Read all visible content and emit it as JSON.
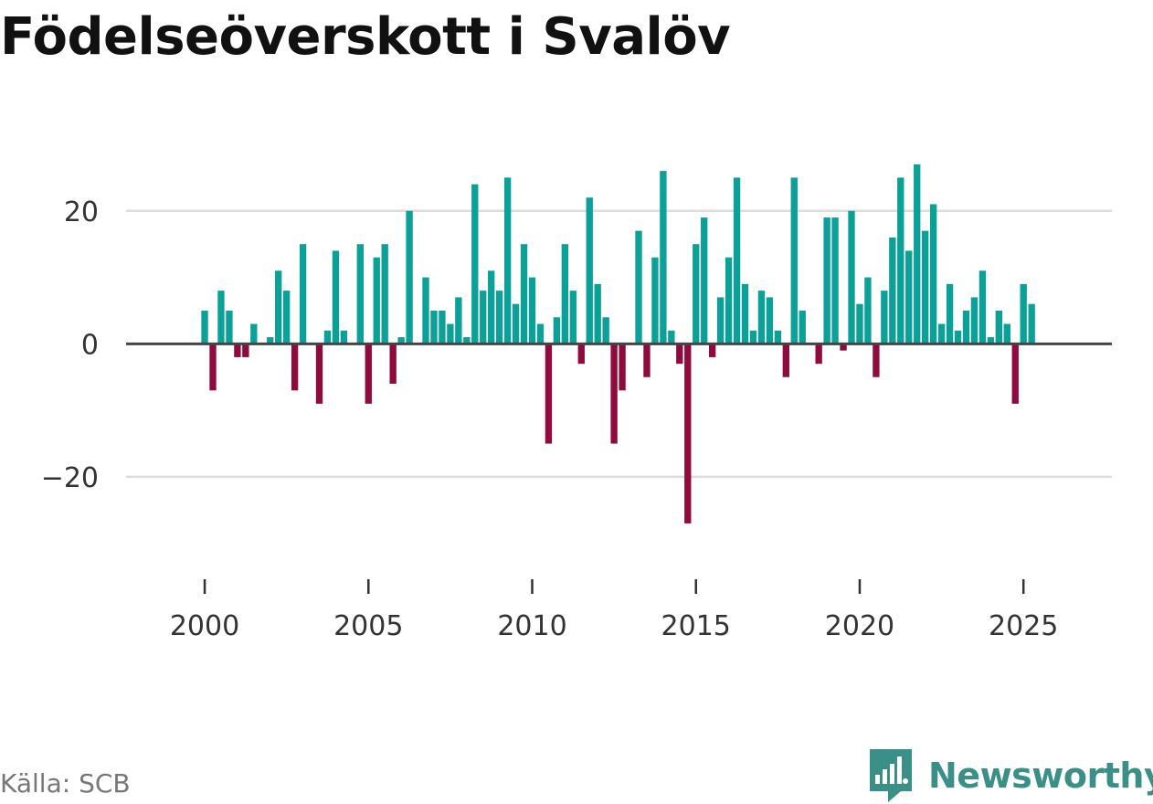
{
  "title": "Födelseöverskott i Svalöv",
  "source": "Källa: SCB",
  "brand": {
    "name": "Newsworthy",
    "icon": "newsworthy-logo-icon"
  },
  "colors": {
    "positive": "#0ba198",
    "negative": "#8f0b3e",
    "grid": "#dddddd",
    "zero": "#444444",
    "brand": "#3a8f86"
  },
  "chart_data": {
    "type": "bar",
    "title": "Födelseöverskott i Svalöv",
    "xlabel": "",
    "ylabel": "",
    "x_start": 2000.0,
    "x_step": 0.25,
    "xlim": [
      1997.6,
      2027.7
    ],
    "ylim": [
      -31,
      30
    ],
    "yticks": [
      {
        "value": 20,
        "label": "20"
      },
      {
        "value": 0,
        "label": "0"
      },
      {
        "value": -20,
        "label": "−20"
      }
    ],
    "xticks": [
      {
        "value": 2000,
        "label": "2000"
      },
      {
        "value": 2005,
        "label": "2005"
      },
      {
        "value": 2010,
        "label": "2010"
      },
      {
        "value": 2015,
        "label": "2015"
      },
      {
        "value": 2020,
        "label": "2020"
      },
      {
        "value": 2025,
        "label": "2025"
      }
    ],
    "grid": true,
    "values": [
      5,
      -7,
      8,
      5,
      -2,
      -2,
      3,
      0,
      1,
      11,
      8,
      -7,
      15,
      0,
      -9,
      2,
      14,
      2,
      0,
      15,
      -9,
      13,
      15,
      -6,
      1,
      20,
      0,
      10,
      5,
      5,
      3,
      7,
      1,
      24,
      8,
      11,
      8,
      25,
      6,
      15,
      10,
      3,
      -15,
      4,
      15,
      8,
      -3,
      22,
      9,
      4,
      -15,
      -7,
      0,
      17,
      -5,
      13,
      26,
      2,
      -3,
      -27,
      15,
      19,
      -2,
      7,
      13,
      25,
      9,
      2,
      8,
      7,
      2,
      -5,
      25,
      5,
      0,
      -3,
      19,
      19,
      -1,
      20,
      6,
      10,
      -5,
      8,
      16,
      25,
      14,
      27,
      17,
      21,
      3,
      9,
      2,
      5,
      7,
      11,
      1,
      5,
      3,
      -9,
      9,
      6
    ]
  }
}
